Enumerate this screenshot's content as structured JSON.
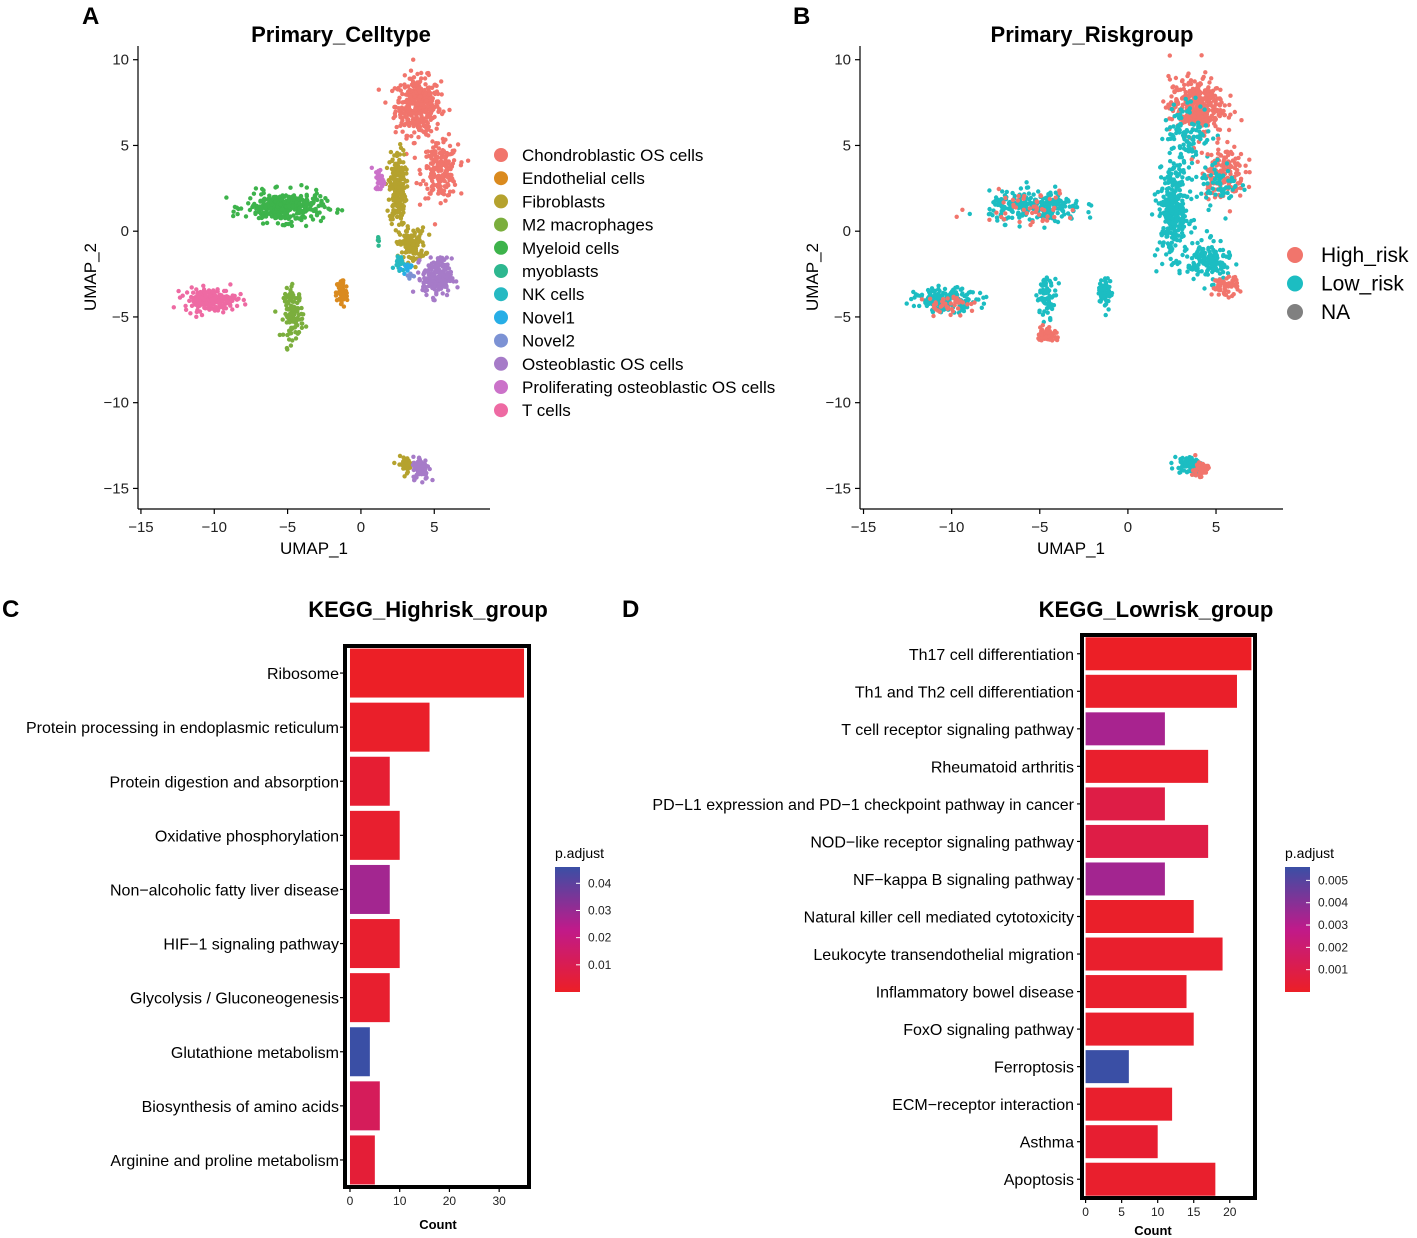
{
  "colors": {
    "celltypes": [
      "#F1756C",
      "#DA8A1E",
      "#B5A22E",
      "#7BAE3D",
      "#3DB34B",
      "#2DB78F",
      "#26B9C2",
      "#27AEE6",
      "#7C92D4",
      "#A67BC8",
      "#CB72C9",
      "#EE6AA3"
    ],
    "risk": [
      "#F1756C",
      "#1CBDC2",
      "#808080"
    ],
    "pgrad_low": "#EC1F26",
    "pgrad_mid": "#C01A8A",
    "pgrad_high": "#3A4FA5"
  },
  "chart_data": [
    {
      "panel": "A",
      "type": "scatter",
      "title": "Primary_Celltype",
      "xlabel": "UMAP_1",
      "ylabel": "UMAP_2",
      "xlim": [
        -15.2,
        8.8
      ],
      "ylim": [
        -16.2,
        10.8
      ],
      "xticks": [
        -15,
        -10,
        -5,
        0,
        5
      ],
      "yticks": [
        10,
        5,
        0,
        -5,
        -10,
        -15
      ],
      "xtick_labels": [
        "−15",
        "−10",
        "−5",
        "0",
        "5"
      ],
      "ytick_labels": [
        "10",
        "5",
        "0",
        "−5",
        "−10",
        "−15"
      ],
      "legend": [
        "Chondroblastic OS cells",
        "Endothelial cells",
        "Fibroblasts",
        "M2 macrophages",
        "Myeloid cells",
        "myoblasts",
        "NK cells",
        "Novel1",
        "Novel2",
        "Osteoblastic OS cells",
        "Proliferating osteoblastic OS cells",
        "T cells"
      ],
      "clusters": [
        {
          "label": "Chondroblastic OS cells",
          "cx": 3.9,
          "cy": 7.3,
          "sx": 1.4,
          "sy": 1.5,
          "n": 380
        },
        {
          "label": "Chondroblastic OS cells",
          "cx": 5.4,
          "cy": 3.5,
          "sx": 1.1,
          "sy": 1.4,
          "n": 200
        },
        {
          "label": "Endothelial cells",
          "cx": -1.3,
          "cy": -3.6,
          "sx": 0.35,
          "sy": 0.8,
          "n": 60
        },
        {
          "label": "Fibroblasts",
          "cx": 2.5,
          "cy": 2.5,
          "sx": 0.5,
          "sy": 2.0,
          "n": 220
        },
        {
          "label": "Fibroblasts",
          "cx": 3.5,
          "cy": -0.8,
          "sx": 0.8,
          "sy": 0.9,
          "n": 120
        },
        {
          "label": "Fibroblasts",
          "cx": 3.1,
          "cy": -13.6,
          "sx": 0.5,
          "sy": 0.4,
          "n": 40
        },
        {
          "label": "M2 macrophages",
          "cx": -4.6,
          "cy": -4.8,
          "sx": 0.6,
          "sy": 1.3,
          "n": 120
        },
        {
          "label": "Myeloid cells",
          "cx": -5.2,
          "cy": 1.4,
          "sx": 2.4,
          "sy": 0.8,
          "n": 320
        },
        {
          "label": "myoblasts",
          "cx": 1.2,
          "cy": -0.6,
          "sx": 0.1,
          "sy": 0.3,
          "n": 6
        },
        {
          "label": "NK cells",
          "cx": 2.6,
          "cy": -1.8,
          "sx": 0.3,
          "sy": 0.4,
          "n": 20
        },
        {
          "label": "Novel1",
          "cx": 3.1,
          "cy": -2.2,
          "sx": 0.3,
          "sy": 0.3,
          "n": 15
        },
        {
          "label": "Novel2",
          "cx": 3.3,
          "cy": -2.6,
          "sx": 0.2,
          "sy": 0.2,
          "n": 8
        },
        {
          "label": "Osteoblastic OS cells",
          "cx": 5.2,
          "cy": -2.7,
          "sx": 0.9,
          "sy": 1.0,
          "n": 200
        },
        {
          "label": "Osteoblastic OS cells",
          "cx": 4.1,
          "cy": -13.8,
          "sx": 0.5,
          "sy": 0.6,
          "n": 90
        },
        {
          "label": "Proliferating osteoblastic OS cells",
          "cx": 1.3,
          "cy": 3.0,
          "sx": 0.3,
          "sy": 0.6,
          "n": 35
        },
        {
          "label": "T cells",
          "cx": -10.3,
          "cy": -4.0,
          "sx": 1.6,
          "sy": 0.6,
          "n": 200
        }
      ]
    },
    {
      "panel": "B",
      "type": "scatter",
      "title": "Primary_Riskgroup",
      "xlabel": "UMAP_1",
      "ylabel": "UMAP_2",
      "xlim": [
        -15.2,
        8.8
      ],
      "ylim": [
        -16.2,
        10.8
      ],
      "xticks": [
        -15,
        -10,
        -5,
        0,
        5
      ],
      "yticks": [
        10,
        5,
        0,
        -5,
        -10,
        -15
      ],
      "xtick_labels": [
        "−15",
        "−10",
        "−5",
        "0",
        "5"
      ],
      "ytick_labels": [
        "10",
        "5",
        "0",
        "−5",
        "−10",
        "−15"
      ],
      "legend": [
        "High_risk",
        "Low_risk",
        "NA"
      ],
      "clusters": [
        {
          "label": "High_risk",
          "cx": 3.9,
          "cy": 7.3,
          "sx": 1.4,
          "sy": 1.5,
          "n": 330
        },
        {
          "label": "Low_risk",
          "cx": 3.4,
          "cy": 5.8,
          "sx": 1.2,
          "sy": 1.6,
          "n": 110
        },
        {
          "label": "High_risk",
          "cx": 5.4,
          "cy": 3.5,
          "sx": 1.1,
          "sy": 1.4,
          "n": 150
        },
        {
          "label": "Low_risk",
          "cx": 5.2,
          "cy": 2.8,
          "sx": 1.0,
          "sy": 1.2,
          "n": 60
        },
        {
          "label": "Low_risk",
          "cx": -5.2,
          "cy": 1.4,
          "sx": 2.4,
          "sy": 0.8,
          "n": 260
        },
        {
          "label": "High_risk",
          "cx": -5.8,
          "cy": 1.4,
          "sx": 2.6,
          "sy": 0.9,
          "n": 50
        },
        {
          "label": "Low_risk",
          "cx": 2.6,
          "cy": 1.2,
          "sx": 0.8,
          "sy": 2.4,
          "n": 320
        },
        {
          "label": "Low_risk",
          "cx": 4.6,
          "cy": -1.8,
          "sx": 1.1,
          "sy": 1.0,
          "n": 160
        },
        {
          "label": "High_risk",
          "cx": 5.5,
          "cy": -3.2,
          "sx": 0.7,
          "sy": 0.5,
          "n": 60
        },
        {
          "label": "Low_risk",
          "cx": -10.3,
          "cy": -4.0,
          "sx": 1.6,
          "sy": 0.6,
          "n": 170
        },
        {
          "label": "High_risk",
          "cx": -10.0,
          "cy": -4.3,
          "sx": 1.4,
          "sy": 0.5,
          "n": 40
        },
        {
          "label": "Low_risk",
          "cx": -4.6,
          "cy": -3.8,
          "sx": 0.5,
          "sy": 1.0,
          "n": 70
        },
        {
          "label": "High_risk",
          "cx": -4.6,
          "cy": -6.0,
          "sx": 0.5,
          "sy": 0.4,
          "n": 55
        },
        {
          "label": "Low_risk",
          "cx": -1.3,
          "cy": -3.6,
          "sx": 0.35,
          "sy": 0.8,
          "n": 55
        },
        {
          "label": "Low_risk",
          "cx": 3.4,
          "cy": -13.6,
          "sx": 0.7,
          "sy": 0.5,
          "n": 70
        },
        {
          "label": "High_risk",
          "cx": 4.1,
          "cy": -13.9,
          "sx": 0.4,
          "sy": 0.5,
          "n": 50
        }
      ]
    },
    {
      "panel": "C",
      "type": "bar",
      "orientation": "horizontal",
      "title": "KEGG_Highrisk_group",
      "xlabel": "Count",
      "xlim": [
        -1,
        36
      ],
      "xticks": [
        0,
        10,
        20,
        30
      ],
      "categories": [
        "Ribosome",
        "Protein processing in endoplasmic reticulum",
        "Protein digestion and absorption",
        "Oxidative phosphorylation",
        "Non−alcoholic fatty liver disease",
        "HIF−1 signaling pathway",
        "Glycolysis / Gluconeogenesis",
        "Glutathione metabolism",
        "Biosynthesis of amino acids",
        "Arginine and proline metabolism"
      ],
      "values": [
        35,
        16,
        8,
        10,
        8,
        10,
        8,
        4,
        6,
        5
      ],
      "p_adjust": [
        0.0,
        0.001,
        0.003,
        0.002,
        0.028,
        0.002,
        0.002,
        0.046,
        0.012,
        0.004
      ],
      "colorbar": {
        "title": "p.adjust",
        "min": 0.0,
        "max": 0.046,
        "ticks": [
          0.04,
          0.03,
          0.02,
          0.01
        ]
      }
    },
    {
      "panel": "D",
      "type": "bar",
      "orientation": "horizontal",
      "title": "KEGG_Lowrisk_group",
      "xlabel": "Count",
      "xlim": [
        -0.5,
        23.5
      ],
      "xticks": [
        0,
        5,
        10,
        15,
        20
      ],
      "categories": [
        "Th17 cell differentiation",
        "Th1 and Th2 cell differentiation",
        "T cell receptor signaling pathway",
        "Rheumatoid arthritis",
        "PD−L1 expression and PD−1 checkpoint pathway in cancer",
        "NOD−like receptor signaling pathway",
        "NF−kappa B signaling pathway",
        "Natural killer cell mediated cytotoxicity",
        "Leukocyte transendothelial migration",
        "Inflammatory bowel disease",
        "FoxO signaling pathway",
        "Ferroptosis",
        "ECM−receptor interaction",
        "Asthma",
        "Apoptosis"
      ],
      "values": [
        23,
        21,
        11,
        17,
        11,
        17,
        11,
        15,
        19,
        14,
        15,
        6,
        12,
        10,
        18
      ],
      "p_adjust": [
        0.0,
        0.0001,
        0.0033,
        0.0002,
        0.0009,
        0.0009,
        0.0034,
        0.0001,
        0.0002,
        0.0002,
        0.0002,
        0.0056,
        0.0002,
        0.0003,
        0.0002
      ],
      "colorbar": {
        "title": "p.adjust",
        "min": 0.0,
        "max": 0.0056,
        "ticks": [
          0.005,
          0.004,
          0.003,
          0.002,
          0.001
        ]
      }
    }
  ]
}
